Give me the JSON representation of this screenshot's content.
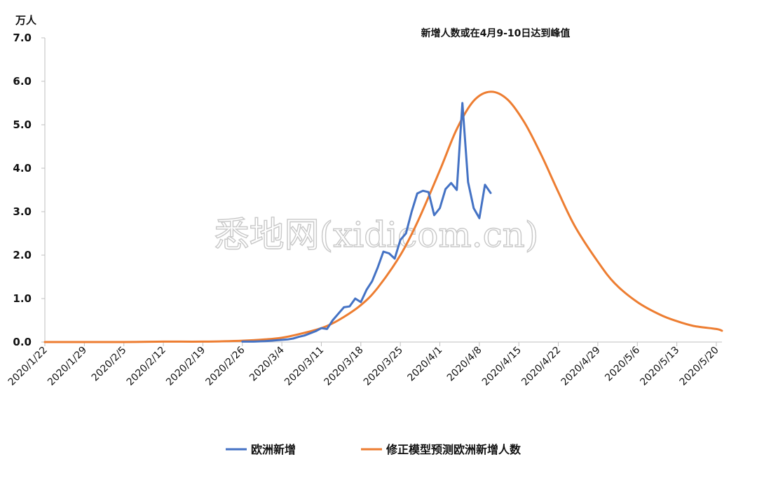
{
  "watermark": "悉地网(xidicom.cn)",
  "colors": {
    "actual": "#4472C4",
    "model": "#ED7D31",
    "axis": "#bfbfbf",
    "text": "#111111"
  },
  "chart_data": {
    "type": "line",
    "title": "新增人数或在4月9-10日达到峰值",
    "ylabel": "万人",
    "xlabel": "",
    "ylim": [
      0,
      7
    ],
    "yticks": [
      "0.0",
      "1.0",
      "2.0",
      "3.0",
      "4.0",
      "5.0",
      "6.0",
      "7.0"
    ],
    "x_start": "2020/1/22",
    "x_tick_labels": [
      "2020/1/22",
      "2020/1/29",
      "2020/2/5",
      "2020/2/12",
      "2020/2/19",
      "2020/2/26",
      "2020/3/4",
      "2020/3/11",
      "2020/3/18",
      "2020/3/25",
      "2020/4/1",
      "2020/4/8",
      "2020/4/15",
      "2020/4/22",
      "2020/4/29",
      "2020/5/6",
      "2020/5/13",
      "2020/5/20"
    ],
    "grid": false,
    "legend": "bottom",
    "series": [
      {
        "name": "欧洲新增",
        "color": "#4472C4",
        "points": [
          [
            "2020/2/26",
            0.01
          ],
          [
            "2020/2/28",
            0.01
          ],
          [
            "2020/3/1",
            0.02
          ],
          [
            "2020/3/3",
            0.04
          ],
          [
            "2020/3/5",
            0.06
          ],
          [
            "2020/3/6",
            0.08
          ],
          [
            "2020/3/7",
            0.12
          ],
          [
            "2020/3/8",
            0.15
          ],
          [
            "2020/3/9",
            0.2
          ],
          [
            "2020/3/10",
            0.25
          ],
          [
            "2020/3/11",
            0.32
          ],
          [
            "2020/3/12",
            0.3
          ],
          [
            "2020/3/13",
            0.5
          ],
          [
            "2020/3/14",
            0.65
          ],
          [
            "2020/3/15",
            0.8
          ],
          [
            "2020/3/16",
            0.82
          ],
          [
            "2020/3/17",
            1.0
          ],
          [
            "2020/3/18",
            0.92
          ],
          [
            "2020/3/19",
            1.2
          ],
          [
            "2020/3/20",
            1.4
          ],
          [
            "2020/3/21",
            1.72
          ],
          [
            "2020/3/22",
            2.08
          ],
          [
            "2020/3/23",
            2.04
          ],
          [
            "2020/3/24",
            1.92
          ],
          [
            "2020/3/25",
            2.35
          ],
          [
            "2020/3/26",
            2.5
          ],
          [
            "2020/3/27",
            3.0
          ],
          [
            "2020/3/28",
            3.42
          ],
          [
            "2020/3/29",
            3.48
          ],
          [
            "2020/3/30",
            3.45
          ],
          [
            "2020/3/31",
            2.92
          ],
          [
            "2020/4/1",
            3.08
          ],
          [
            "2020/4/2",
            3.52
          ],
          [
            "2020/4/3",
            3.66
          ],
          [
            "2020/4/4",
            3.5
          ],
          [
            "2020/4/5",
            5.5
          ],
          [
            "2020/4/6",
            3.68
          ],
          [
            "2020/4/7",
            3.08
          ],
          [
            "2020/4/8",
            2.85
          ],
          [
            "2020/4/9",
            3.62
          ],
          [
            "2020/4/10",
            3.43
          ]
        ]
      },
      {
        "name": "修正模型预测欧洲新增人数",
        "color": "#ED7D31",
        "points": [
          [
            "2020/1/22",
            0.0
          ],
          [
            "2020/2/5",
            0.0
          ],
          [
            "2020/2/12",
            0.01
          ],
          [
            "2020/2/19",
            0.01
          ],
          [
            "2020/2/26",
            0.03
          ],
          [
            "2020/3/1",
            0.06
          ],
          [
            "2020/3/4",
            0.1
          ],
          [
            "2020/3/7",
            0.18
          ],
          [
            "2020/3/11",
            0.32
          ],
          [
            "2020/3/14",
            0.5
          ],
          [
            "2020/3/18",
            0.85
          ],
          [
            "2020/3/21",
            1.25
          ],
          [
            "2020/3/25",
            2.0
          ],
          [
            "2020/3/28",
            2.75
          ],
          [
            "2020/4/1",
            3.95
          ],
          [
            "2020/4/4",
            4.9
          ],
          [
            "2020/4/7",
            5.55
          ],
          [
            "2020/4/10",
            5.76
          ],
          [
            "2020/4/13",
            5.58
          ],
          [
            "2020/4/16",
            5.05
          ],
          [
            "2020/4/19",
            4.3
          ],
          [
            "2020/4/22",
            3.45
          ],
          [
            "2020/4/25",
            2.65
          ],
          [
            "2020/4/29",
            1.85
          ],
          [
            "2020/5/2",
            1.35
          ],
          [
            "2020/5/6",
            0.92
          ],
          [
            "2020/5/10",
            0.63
          ],
          [
            "2020/5/13",
            0.48
          ],
          [
            "2020/5/16",
            0.37
          ],
          [
            "2020/5/20",
            0.3
          ],
          [
            "2020/5/21",
            0.26
          ]
        ]
      }
    ]
  }
}
